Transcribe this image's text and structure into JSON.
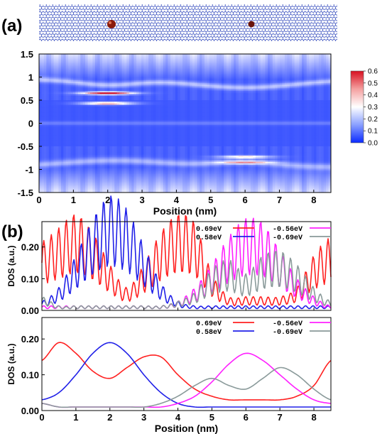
{
  "panels": {
    "a_label": "(a)",
    "b_label": "(b)"
  },
  "colors": {
    "red": "#ff2020",
    "blue": "#2020e8",
    "magenta": "#ff20ff",
    "gray": "#8a9a9a",
    "map_low": "#0a2aff",
    "map_mid": "#ffffff",
    "map_high": "#e0101c",
    "lattice": "#3b55c8",
    "atom": "#8a1a0a"
  },
  "chart_data": [
    {
      "type": "heatmap",
      "panel": "a",
      "xlabel": "Position (nm)",
      "ylabel": "",
      "xlim": [
        0,
        8.5
      ],
      "ylim": [
        -1.5,
        1.5
      ],
      "x_ticks": [
        "0",
        "1",
        "2",
        "3",
        "4",
        "5",
        "6",
        "7",
        "8"
      ],
      "y_ticks": [
        "1.5",
        "1",
        "0.5",
        "0",
        "-0.5",
        "-1",
        "-1.5"
      ],
      "colorbar": {
        "ticks": [
          "0.6",
          "0.5",
          "0.4",
          "0.3",
          "0.2",
          "0.1",
          "0.0"
        ],
        "range": [
          0,
          0.6
        ]
      },
      "bright_bands": [
        {
          "center_x": 2.0,
          "energy": 0.65,
          "value": 0.55
        },
        {
          "center_x": 2.0,
          "energy": 0.43,
          "value": 0.4
        },
        {
          "center_x": 6.0,
          "energy": -0.73,
          "value": 0.3
        },
        {
          "center_x": 6.0,
          "energy": -0.85,
          "value": 0.25
        }
      ]
    },
    {
      "type": "line",
      "panel": "b-top",
      "xlabel": "",
      "ylabel": "DOS (a.u.)",
      "xlim": [
        0,
        8.5
      ],
      "ylim": [
        0,
        0.28
      ],
      "x_ticks": [
        "0",
        "1",
        "2",
        "3",
        "4",
        "5",
        "6",
        "7",
        "8"
      ],
      "y_ticks": [
        "0.20",
        "0.10",
        "0.00"
      ],
      "x": [
        0,
        0.5,
        1,
        1.5,
        2,
        2.5,
        3,
        3.5,
        4,
        4.5,
        5,
        5.5,
        6,
        6.5,
        7,
        7.5,
        8,
        8.5
      ],
      "series": [
        {
          "name": "0.69eV",
          "color": "red",
          "oscillating": true,
          "values": [
            0.15,
            0.18,
            0.21,
            0.17,
            0.1,
            0.05,
            0.1,
            0.17,
            0.21,
            0.19,
            0.08,
            0.03,
            0.03,
            0.03,
            0.03,
            0.05,
            0.12,
            0.16
          ]
        },
        {
          "name": "0.58eV",
          "color": "blue",
          "oscillating": true,
          "values": [
            0.02,
            0.05,
            0.12,
            0.2,
            0.25,
            0.22,
            0.14,
            0.06,
            0.02,
            0.01,
            0.01,
            0.01,
            0.01,
            0.01,
            0.01,
            0.01,
            0.01,
            0.01
          ]
        },
        {
          "name": "-0.56eV",
          "color": "magenta",
          "oscillating": true,
          "values": [
            0.01,
            0.01,
            0.01,
            0.01,
            0.01,
            0.01,
            0.01,
            0.01,
            0.02,
            0.05,
            0.1,
            0.16,
            0.2,
            0.19,
            0.13,
            0.07,
            0.03,
            0.01
          ]
        },
        {
          "name": "-0.69eV",
          "color": "gray",
          "oscillating": true,
          "values": [
            0.03,
            0.01,
            0.01,
            0.01,
            0.01,
            0.01,
            0.01,
            0.01,
            0.02,
            0.04,
            0.09,
            0.11,
            0.08,
            0.12,
            0.13,
            0.1,
            0.05,
            0.02
          ]
        }
      ]
    },
    {
      "type": "line",
      "panel": "b-bottom",
      "xlabel": "Position (nm)",
      "ylabel": "DOS (a.u.)",
      "xlim": [
        0,
        8.5
      ],
      "ylim": [
        0,
        0.26
      ],
      "x_ticks": [
        "0",
        "1",
        "2",
        "3",
        "4",
        "5",
        "6",
        "7",
        "8"
      ],
      "y_ticks": [
        "0.20",
        "0.10",
        "0.00"
      ],
      "x": [
        0,
        0.5,
        1,
        1.5,
        2,
        2.5,
        3,
        3.5,
        4,
        4.5,
        5,
        5.5,
        6,
        6.5,
        7,
        7.5,
        8,
        8.5
      ],
      "series": [
        {
          "name": "0.69eV",
          "color": "red",
          "oscillating": false,
          "values": [
            0.14,
            0.19,
            0.16,
            0.11,
            0.09,
            0.12,
            0.15,
            0.15,
            0.1,
            0.06,
            0.04,
            0.03,
            0.03,
            0.03,
            0.03,
            0.04,
            0.07,
            0.14
          ]
        },
        {
          "name": "0.58eV",
          "color": "blue",
          "oscillating": false,
          "values": [
            0.03,
            0.05,
            0.1,
            0.16,
            0.19,
            0.16,
            0.1,
            0.05,
            0.02,
            0.01,
            0.01,
            0.01,
            0.01,
            0.01,
            0.01,
            0.01,
            0.01,
            0.01
          ]
        },
        {
          "name": "-0.56eV",
          "color": "magenta",
          "oscillating": false,
          "values": [
            0.02,
            0.01,
            0.01,
            0.01,
            0.01,
            0.01,
            0.01,
            0.01,
            0.02,
            0.04,
            0.08,
            0.13,
            0.16,
            0.14,
            0.1,
            0.06,
            0.03,
            0.02
          ]
        },
        {
          "name": "-0.69eV",
          "color": "gray",
          "oscillating": false,
          "values": [
            0.02,
            0.01,
            0.01,
            0.01,
            0.01,
            0.01,
            0.01,
            0.02,
            0.04,
            0.07,
            0.09,
            0.07,
            0.06,
            0.09,
            0.12,
            0.1,
            0.06,
            0.03
          ]
        }
      ]
    }
  ]
}
